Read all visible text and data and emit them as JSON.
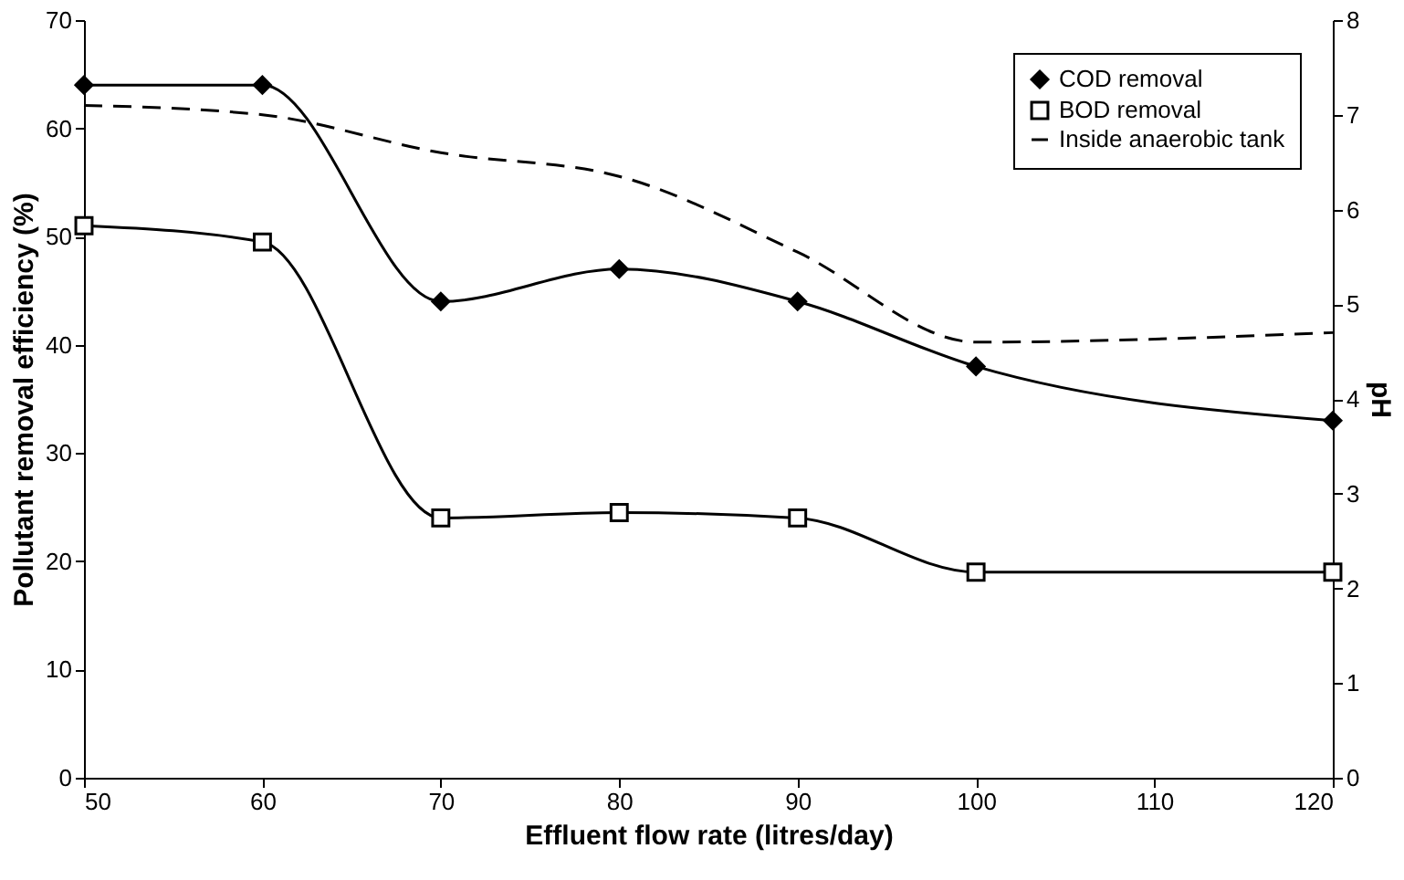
{
  "chart_data": {
    "type": "line",
    "xlabel": "Effluent flow rate (litres/day)",
    "ylabel": "Pollutant removal efficiency (%)",
    "y2label": "pH",
    "x": [
      50,
      60,
      70,
      80,
      90,
      100,
      120
    ],
    "xlim": [
      50,
      120
    ],
    "xticks": [
      50,
      60,
      70,
      80,
      90,
      100,
      110,
      120
    ],
    "ylim": [
      0,
      70
    ],
    "yticks": [
      0,
      10,
      20,
      30,
      40,
      50,
      60,
      70
    ],
    "y2lim": [
      0,
      8
    ],
    "y2ticks": [
      0,
      1,
      2,
      3,
      4,
      5,
      6,
      7,
      8
    ],
    "grid": false,
    "legend": "top right",
    "series": [
      {
        "name": "COD removal",
        "color": "#000000",
        "marker": "diamond",
        "line_style": "solid",
        "values": [
          64,
          64,
          44,
          47,
          44,
          38,
          33
        ]
      },
      {
        "name": "BOD removal",
        "color": "#000000",
        "marker": "square",
        "line_style": "solid",
        "values": [
          51,
          49.5,
          24,
          24.5,
          24,
          19,
          19
        ]
      },
      {
        "name": "Inside anaerobic tank",
        "color": "#000000",
        "marker": "none",
        "line_style": "dashed",
        "axis": "y2",
        "values": [
          7.1,
          7.0,
          6.6,
          6.35,
          5.55,
          4.6,
          4.7
        ]
      }
    ]
  }
}
